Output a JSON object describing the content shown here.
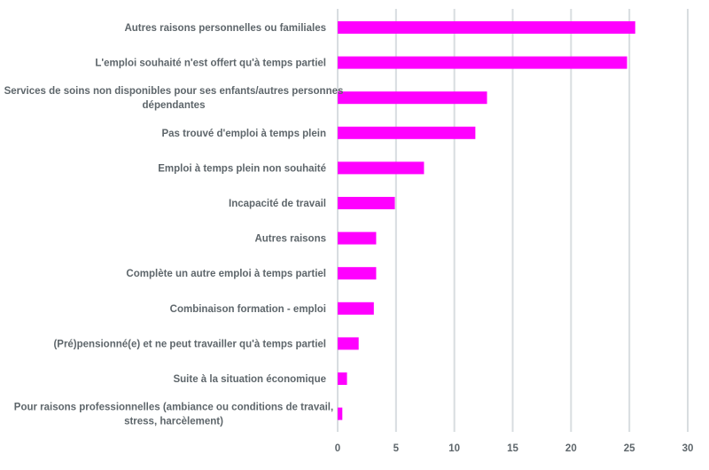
{
  "chart_data": {
    "type": "bar",
    "orientation": "horizontal",
    "bar_color": "#ff00ff",
    "grid_color": "#d8dde0",
    "text_color": "#5e666b",
    "grid": true,
    "xlim": [
      0,
      30
    ],
    "xticks": [
      "0",
      "5",
      "10",
      "15",
      "20",
      "25",
      "30"
    ],
    "categories": [
      "Autres raisons personnelles ou familiales",
      "L'emploi souhaité n'est offert qu'à temps partiel",
      "Services de soins non disponibles pour ses enfants/autres personnes dépendantes",
      "Pas trouvé d'emploi à temps plein",
      "Emploi à temps plein non souhaité",
      "Incapacité de travail",
      "Autres raisons",
      "Complète un autre emploi à temps partiel",
      "Combinaison formation - emploi",
      "(Pré)pensionné(e) et ne peut travailler qu'à temps partiel",
      "Suite à la situation économique",
      "Pour raisons professionnelles (ambiance ou conditions de travail, stress, harcèlement)"
    ],
    "values": [
      25.5,
      24.8,
      12.8,
      11.8,
      7.4,
      4.9,
      3.3,
      3.3,
      3.1,
      1.8,
      0.8,
      0.4
    ]
  }
}
